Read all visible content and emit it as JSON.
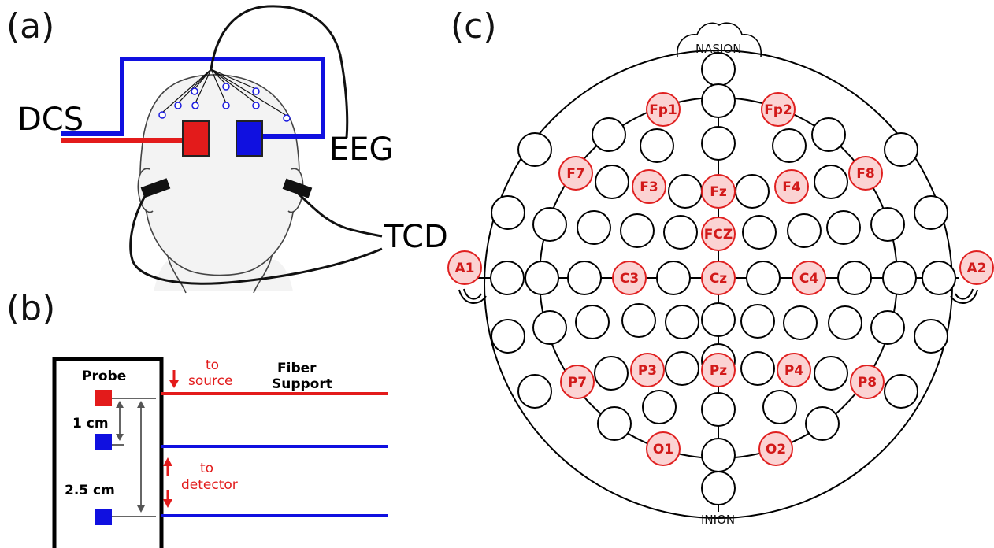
{
  "panels": {
    "a": {
      "letter": "(a)",
      "labels": {
        "dcs": "DCS",
        "eeg": "EEG",
        "tcd": "TCD"
      },
      "colors": {
        "red_fiber": "#e31b1b",
        "blue_fiber": "#1010e0",
        "head_fill": "#f3f3f3"
      }
    },
    "b": {
      "letter": "(b)",
      "probe": "Probe",
      "fiber_support": [
        "Fiber",
        "Support"
      ],
      "to_source": [
        "to",
        "source"
      ],
      "to_detector": [
        "to",
        "detector"
      ],
      "distances": [
        "1 cm",
        "2.5 cm"
      ],
      "colors": {
        "source": "#e31b1b",
        "detector": "#1010e0",
        "arrow": "#e31b1b"
      }
    },
    "c": {
      "letter": "(c)",
      "nasion": "NASION",
      "inion": "INION",
      "electrodes": [
        "Fp1",
        "Fp2",
        "F7",
        "F3",
        "Fz",
        "F4",
        "F8",
        "FCZ",
        "A1",
        "C3",
        "Cz",
        "C4",
        "A2",
        "P7",
        "P3",
        "Pz",
        "P4",
        "P8",
        "O1",
        "O2"
      ],
      "colors": {
        "highlight_fill": "#fbd3d3",
        "highlight_stroke": "#e02020",
        "highlight_text": "#d21a1a"
      }
    }
  }
}
